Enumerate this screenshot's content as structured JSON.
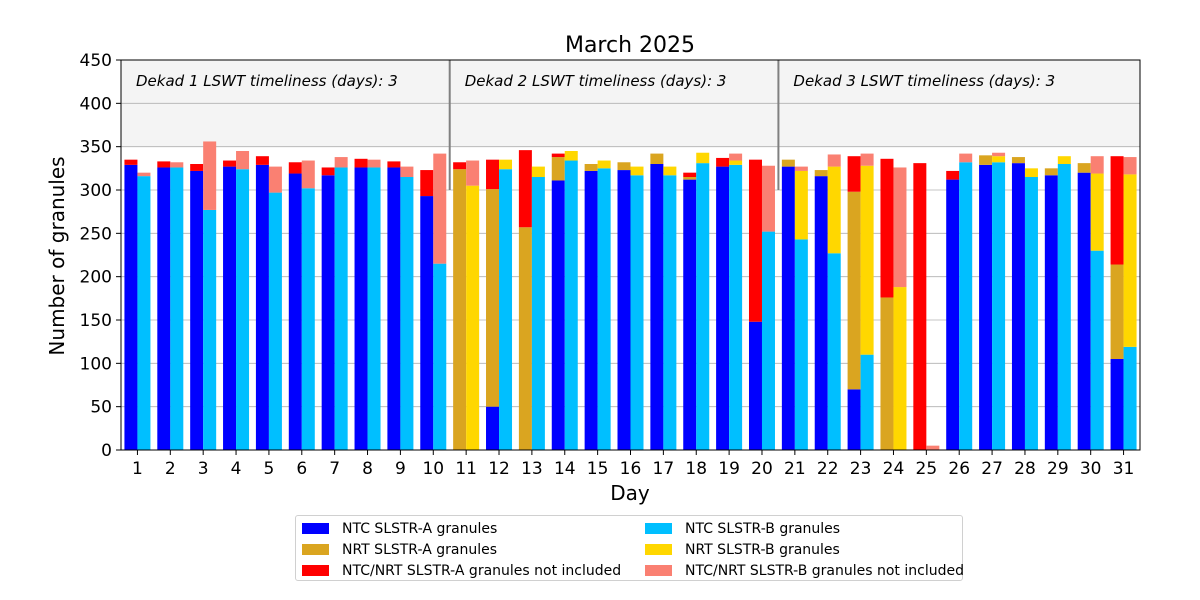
{
  "chart_data": {
    "type": "bar",
    "subtype": "grouped-stacked",
    "title": "March 2025",
    "xlabel": "Day",
    "ylabel": "Number of granules",
    "ylim": [
      0,
      450
    ],
    "yticks": [
      0,
      50,
      100,
      150,
      200,
      250,
      300,
      350,
      400,
      450
    ],
    "grid": true,
    "categories": [
      "1",
      "2",
      "3",
      "4",
      "5",
      "6",
      "7",
      "8",
      "9",
      "10",
      "11",
      "12",
      "13",
      "14",
      "15",
      "16",
      "17",
      "18",
      "19",
      "20",
      "21",
      "22",
      "23",
      "24",
      "25",
      "26",
      "27",
      "28",
      "29",
      "30",
      "31"
    ],
    "header_band": {
      "from": 350,
      "to": 450
    },
    "annotations": [
      "Dekad 1 LSWT timeliness (days): 3",
      "Dekad 2 LSWT timeliness (days): 3",
      "Dekad 3 LSWT timeliness (days): 3"
    ],
    "dekad_separators_after_day": [
      10,
      20
    ],
    "legend_position": "below",
    "series": [
      {
        "name": "NTC SLSTR-A granules",
        "color": "#0000ff",
        "bar": "A",
        "values": [
          329,
          326,
          322,
          327,
          329,
          319,
          317,
          326,
          326,
          293,
          0,
          50,
          0,
          311,
          322,
          323,
          330,
          312,
          327,
          148,
          327,
          316,
          70,
          0,
          0,
          312,
          329,
          331,
          317,
          320,
          105
        ]
      },
      {
        "name": "NRT SLSTR-A granules",
        "color": "#daa520",
        "bar": "A",
        "values": [
          0,
          0,
          0,
          0,
          0,
          0,
          0,
          0,
          0,
          0,
          324,
          251,
          257,
          27,
          8,
          9,
          12,
          3,
          0,
          0,
          8,
          7,
          228,
          176,
          0,
          0,
          11,
          7,
          8,
          11,
          109
        ]
      },
      {
        "name": "NTC/NRT SLSTR-A granules not included",
        "color": "#ff0000",
        "bar": "A",
        "values": [
          6,
          7,
          8,
          7,
          10,
          13,
          9,
          10,
          7,
          30,
          8,
          34,
          89,
          4,
          0,
          0,
          0,
          5,
          10,
          187,
          0,
          0,
          41,
          160,
          331,
          10,
          0,
          0,
          0,
          0,
          125
        ]
      },
      {
        "name": "NTC SLSTR-B granules",
        "color": "#00bfff",
        "bar": "B",
        "values": [
          316,
          326,
          277,
          324,
          297,
          302,
          326,
          326,
          315,
          215,
          0,
          324,
          315,
          334,
          325,
          317,
          317,
          331,
          329,
          252,
          243,
          227,
          110,
          0,
          0,
          332,
          332,
          315,
          330,
          230,
          119
        ]
      },
      {
        "name": "NRT SLSTR-B granules",
        "color": "#ffd700",
        "bar": "B",
        "values": [
          0,
          0,
          0,
          0,
          0,
          0,
          0,
          0,
          0,
          0,
          305,
          11,
          12,
          11,
          9,
          10,
          10,
          12,
          5,
          0,
          79,
          100,
          218,
          188,
          0,
          0,
          7,
          10,
          9,
          89,
          199
        ]
      },
      {
        "name": "NTC/NRT SLSTR-B granules not included",
        "color": "#fa8072",
        "bar": "B",
        "values": [
          4,
          6,
          79,
          21,
          30,
          32,
          12,
          9,
          12,
          127,
          29,
          0,
          0,
          0,
          0,
          0,
          0,
          0,
          8,
          76,
          5,
          14,
          14,
          138,
          5,
          10,
          4,
          0,
          0,
          20,
          20
        ]
      }
    ]
  }
}
